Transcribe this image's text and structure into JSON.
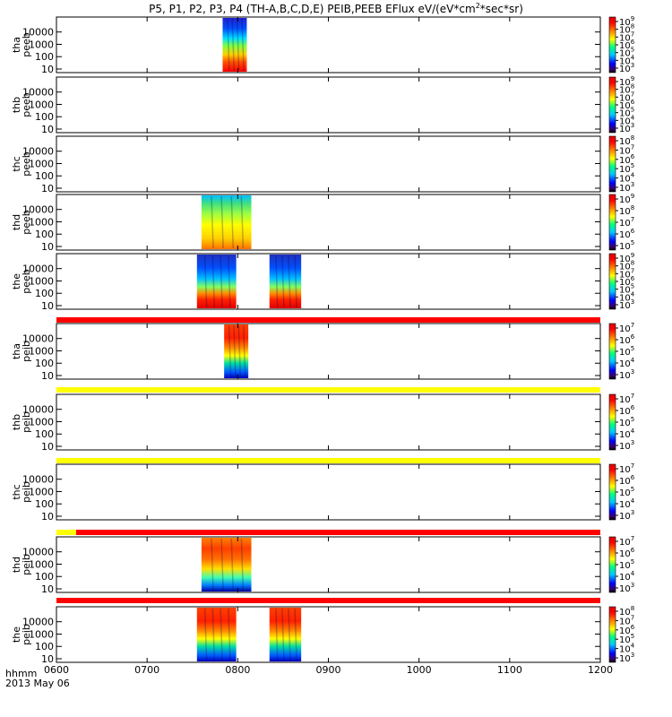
{
  "title": "P5, P1, P2, P3, P4 (TH-A,B,C,D,E) PEIB,PEEB EFlux eV/(eV*cm",
  "title_sup": "2",
  "title_end": "*sec*sr)",
  "time_axis": {
    "ticks": [
      "0600",
      "0700",
      "0800",
      "0900",
      "1000",
      "1100",
      "1200"
    ],
    "label": "hhmm",
    "date": "2013 May 06"
  },
  "colors": {
    "flag_red": "#ff0000",
    "flag_yellow": "#ffff00"
  },
  "chart_data": {
    "type": "heatmap",
    "x_range": [
      "06:00",
      "12:00"
    ],
    "y_scale": "log",
    "y_ticks": [
      "10",
      "100",
      "1000",
      "10000"
    ],
    "panels": [
      {
        "ylabel": [
          "tha",
          "peeb"
        ],
        "cbar_range": [
          3,
          9
        ],
        "cbar_ticks": [
          [
            "10",
            "9"
          ],
          [
            "10",
            "8"
          ],
          [
            "10",
            "7"
          ],
          [
            "10",
            "6"
          ],
          [
            "10",
            "5"
          ],
          [
            "10",
            "4"
          ],
          [
            "10",
            "3"
          ]
        ],
        "segments": [
          {
            "start": "07:50",
            "end": "08:06",
            "style": "peeb"
          }
        ]
      },
      {
        "ylabel": [
          "thb",
          "peeb"
        ],
        "cbar_range": [
          3,
          9
        ],
        "cbar_ticks": [
          [
            "10",
            "9"
          ],
          [
            "10",
            "8"
          ],
          [
            "10",
            "7"
          ],
          [
            "10",
            "6"
          ],
          [
            "10",
            "5"
          ],
          [
            "10",
            "4"
          ],
          [
            "10",
            "3"
          ]
        ],
        "segments": []
      },
      {
        "ylabel": [
          "thc",
          "peeb"
        ],
        "cbar_range": [
          3,
          8
        ],
        "cbar_ticks": [
          [
            "10",
            "8"
          ],
          [
            "10",
            "7"
          ],
          [
            "10",
            "6"
          ],
          [
            "10",
            "5"
          ],
          [
            "10",
            "4"
          ],
          [
            "10",
            "3"
          ]
        ],
        "segments": []
      },
      {
        "ylabel": [
          "thd",
          "peeb"
        ],
        "cbar_range": [
          5,
          9
        ],
        "cbar_ticks": [
          [
            "10",
            "9"
          ],
          [
            "10",
            "8"
          ],
          [
            "10",
            "7"
          ],
          [
            "10",
            "6"
          ],
          [
            "10",
            "5"
          ]
        ],
        "segments": [
          {
            "start": "07:36",
            "end": "08:09",
            "style": "peeb_broad"
          }
        ]
      },
      {
        "ylabel": [
          "the",
          "peeb"
        ],
        "cbar_range": [
          3,
          9
        ],
        "cbar_ticks": [
          [
            "10",
            "9"
          ],
          [
            "10",
            "8"
          ],
          [
            "10",
            "7"
          ],
          [
            "10",
            "6"
          ],
          [
            "10",
            "5"
          ],
          [
            "10",
            "4"
          ],
          [
            "10",
            "3"
          ]
        ],
        "segments": [
          {
            "start": "07:33",
            "end": "07:59",
            "style": "peeb_low"
          },
          {
            "start": "08:21",
            "end": "08:42",
            "style": "peeb_low"
          }
        ],
        "flag": {
          "color": "red",
          "start": "06:00",
          "end": "12:00"
        }
      },
      {
        "ylabel": [
          "tha",
          "peib"
        ],
        "cbar_range": [
          3,
          7
        ],
        "cbar_ticks": [
          [
            "10",
            "7"
          ],
          [
            "10",
            "6"
          ],
          [
            "10",
            "5"
          ],
          [
            "10",
            "4"
          ],
          [
            "10",
            "3"
          ]
        ],
        "segments": [
          {
            "start": "07:51",
            "end": "08:07",
            "style": "peib"
          }
        ],
        "flag": {
          "color": "yellow",
          "start": "06:00",
          "end": "12:00"
        }
      },
      {
        "ylabel": [
          "thb",
          "peib"
        ],
        "cbar_range": [
          3,
          7
        ],
        "cbar_ticks": [
          [
            "10",
            "7"
          ],
          [
            "10",
            "6"
          ],
          [
            "10",
            "5"
          ],
          [
            "10",
            "4"
          ],
          [
            "10",
            "3"
          ]
        ],
        "segments": [],
        "flag": {
          "color": "yellow",
          "start": "06:00",
          "end": "12:00"
        }
      },
      {
        "ylabel": [
          "thc",
          "peib"
        ],
        "cbar_range": [
          3,
          7
        ],
        "cbar_ticks": [
          [
            "10",
            "7"
          ],
          [
            "10",
            "6"
          ],
          [
            "10",
            "5"
          ],
          [
            "10",
            "4"
          ],
          [
            "10",
            "3"
          ]
        ],
        "segments": [],
        "flag": {
          "color": "red",
          "start": "06:13",
          "end": "12:00"
        }
      },
      {
        "ylabel": [
          "thd",
          "peib"
        ],
        "cbar_range": [
          3,
          7
        ],
        "cbar_ticks": [
          [
            "10",
            "7"
          ],
          [
            "10",
            "6"
          ],
          [
            "10",
            "5"
          ],
          [
            "10",
            "4"
          ],
          [
            "10",
            "3"
          ]
        ],
        "segments": [
          {
            "start": "07:36",
            "end": "08:09",
            "style": "peib_broad"
          }
        ],
        "flag": {
          "color": "red",
          "start": "06:00",
          "end": "12:00"
        }
      },
      {
        "ylabel": [
          "the",
          "peib"
        ],
        "cbar_range": [
          3,
          8
        ],
        "cbar_ticks": [
          [
            "10",
            "8"
          ],
          [
            "10",
            "7"
          ],
          [
            "10",
            "6"
          ],
          [
            "10",
            "5"
          ],
          [
            "10",
            "4"
          ],
          [
            "10",
            "3"
          ]
        ],
        "segments": [
          {
            "start": "07:33",
            "end": "07:59",
            "style": "peib"
          },
          {
            "start": "08:21",
            "end": "08:42",
            "style": "peib"
          }
        ]
      }
    ]
  }
}
